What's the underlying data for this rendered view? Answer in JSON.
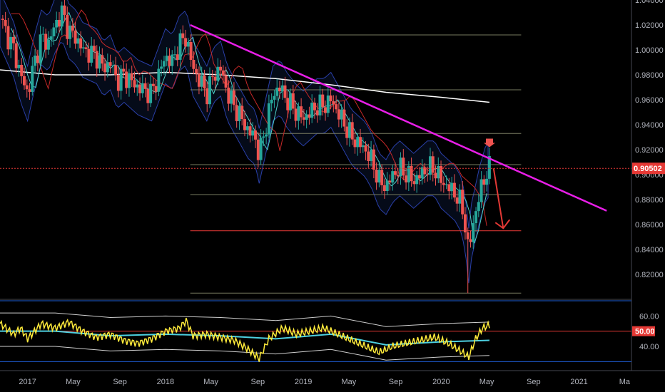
{
  "colors": {
    "background": "#000000",
    "candle_up": "#26a69a",
    "candle_down": "#ef5350",
    "trendline": "#e91ee8",
    "fib_line": "#787b60",
    "fib_red_line": "#e53935",
    "current_price_line": "#e53935",
    "bb_outline": "#2a3fa8",
    "ma_white": "#ffffff",
    "ma_red": "#c62828",
    "ma_teal": "#4dd0c8",
    "rsi_line": "#ffeb3b",
    "rsi_ma": "#4dd0e1",
    "rsi_band": "#cfcfcf",
    "rsi_mid_line": "#e53935",
    "rsi_bound_line": "#1e5bd1",
    "arrow": "#e53935",
    "marker": "#ef5350"
  },
  "chart_data": [
    {
      "type": "candlestick",
      "name": "price",
      "title": "",
      "ylim": [
        0.8,
        1.04
      ],
      "y_ticks": [
        "1.04000",
        "1.02000",
        "1.00000",
        "0.98000",
        "0.96000",
        "0.94000",
        "0.92000",
        "0.90000",
        "0.88000",
        "0.86000",
        "0.84000",
        "0.82000"
      ],
      "y_tick_values": [
        1.04,
        1.02,
        1.0,
        0.98,
        0.96,
        0.94,
        0.92,
        0.9,
        0.88,
        0.86,
        0.84,
        0.82
      ],
      "x_ticks": [
        "2017",
        "May",
        "Sep",
        "2018",
        "May",
        "Sep",
        "2019",
        "May",
        "Sep",
        "2020",
        "May",
        "Sep",
        "2021",
        "Ma"
      ],
      "x_tick_values": [
        2017.0,
        2017.33,
        2017.67,
        2018.0,
        2018.33,
        2018.67,
        2019.0,
        2019.33,
        2019.67,
        2020.0,
        2020.33,
        2020.67,
        2021.0,
        2021.33
      ],
      "x_range": [
        2016.8,
        2021.38
      ],
      "current_price": 0.90502,
      "current_price_label": "0.90502",
      "close_path": [
        [
          2016.8,
          1.025
        ],
        [
          2016.9,
          1.0
        ],
        [
          2016.95,
          0.98
        ],
        [
          2017.0,
          0.965
        ],
        [
          2017.05,
          0.99
        ],
        [
          2017.1,
          1.01
        ],
        [
          2017.15,
          1.005
        ],
        [
          2017.2,
          1.02
        ],
        [
          2017.25,
          1.03
        ],
        [
          2017.3,
          1.015
        ],
        [
          2017.35,
          1.01
        ],
        [
          2017.4,
          1.0
        ],
        [
          2017.5,
          0.995
        ],
        [
          2017.55,
          0.985
        ],
        [
          2017.6,
          0.99
        ],
        [
          2017.65,
          0.975
        ],
        [
          2017.7,
          0.98
        ],
        [
          2017.8,
          0.97
        ],
        [
          2017.9,
          0.965
        ],
        [
          2017.95,
          0.98
        ],
        [
          2018.0,
          0.995
        ],
        [
          2018.05,
          0.99
        ],
        [
          2018.1,
          1.005
        ],
        [
          2018.15,
          1.01
        ],
        [
          2018.2,
          0.985
        ],
        [
          2018.25,
          0.975
        ],
        [
          2018.3,
          0.965
        ],
        [
          2018.35,
          0.98
        ],
        [
          2018.4,
          0.985
        ],
        [
          2018.45,
          0.965
        ],
        [
          2018.5,
          0.955
        ],
        [
          2018.55,
          0.945
        ],
        [
          2018.6,
          0.935
        ],
        [
          2018.65,
          0.93
        ],
        [
          2018.68,
          0.915
        ],
        [
          2018.72,
          0.935
        ],
        [
          2018.78,
          0.965
        ],
        [
          2018.83,
          0.97
        ],
        [
          2018.88,
          0.96
        ],
        [
          2018.95,
          0.95
        ],
        [
          2019.0,
          0.945
        ],
        [
          2019.05,
          0.95
        ],
        [
          2019.1,
          0.955
        ],
        [
          2019.15,
          0.955
        ],
        [
          2019.2,
          0.96
        ],
        [
          2019.25,
          0.95
        ],
        [
          2019.3,
          0.94
        ],
        [
          2019.35,
          0.93
        ],
        [
          2019.4,
          0.925
        ],
        [
          2019.45,
          0.92
        ],
        [
          2019.5,
          0.91
        ],
        [
          2019.55,
          0.895
        ],
        [
          2019.6,
          0.89
        ],
        [
          2019.65,
          0.9
        ],
        [
          2019.7,
          0.905
        ],
        [
          2019.75,
          0.9
        ],
        [
          2019.8,
          0.895
        ],
        [
          2019.85,
          0.9
        ],
        [
          2019.9,
          0.905
        ],
        [
          2019.95,
          0.905
        ],
        [
          2020.0,
          0.895
        ],
        [
          2020.05,
          0.89
        ],
        [
          2020.1,
          0.885
        ],
        [
          2020.15,
          0.875
        ],
        [
          2020.18,
          0.855
        ],
        [
          2020.2,
          0.835
        ],
        [
          2020.22,
          0.855
        ],
        [
          2020.25,
          0.87
        ],
        [
          2020.28,
          0.885
        ],
        [
          2020.32,
          0.9
        ],
        [
          2020.35,
          0.905
        ]
      ],
      "candles_note": "",
      "trendline": {
        "from": [
          2018.18,
          1.02
        ],
        "to": [
          2021.2,
          0.871
        ]
      },
      "fib_levels": [
        1.012,
        0.968,
        0.933,
        0.908,
        0.884,
        0.855,
        0.805
      ],
      "fib_red_level": 0.855,
      "ma_white": [
        [
          2016.8,
          0.984
        ],
        [
          2017.2,
          0.98
        ],
        [
          2017.6,
          0.98
        ],
        [
          2018.0,
          0.982
        ],
        [
          2018.4,
          0.98
        ],
        [
          2018.8,
          0.977
        ],
        [
          2019.2,
          0.972
        ],
        [
          2019.6,
          0.966
        ],
        [
          2020.0,
          0.962
        ],
        [
          2020.35,
          0.958
        ]
      ],
      "arrow_from": [
        2020.38,
        0.905
      ],
      "arrow_to": [
        2020.45,
        0.857
      ],
      "marker_at": [
        2020.35,
        0.922
      ]
    },
    {
      "type": "line",
      "name": "rsi",
      "ylim": [
        25,
        70
      ],
      "y_ticks": [
        "60.00",
        "40.00"
      ],
      "y_tick_values": [
        60,
        40
      ],
      "highlight_value": 50,
      "highlight_label": "50.00",
      "upper_bound": 70,
      "lower_bound": 30,
      "rsi_path": [
        [
          2016.8,
          55
        ],
        [
          2016.9,
          48
        ],
        [
          2016.95,
          52
        ],
        [
          2017.0,
          45
        ],
        [
          2017.1,
          55
        ],
        [
          2017.2,
          52
        ],
        [
          2017.3,
          56
        ],
        [
          2017.4,
          50
        ],
        [
          2017.5,
          46
        ],
        [
          2017.6,
          48
        ],
        [
          2017.7,
          44
        ],
        [
          2017.8,
          42
        ],
        [
          2017.9,
          45
        ],
        [
          2018.0,
          50
        ],
        [
          2018.1,
          52
        ],
        [
          2018.15,
          57
        ],
        [
          2018.2,
          47
        ],
        [
          2018.3,
          48
        ],
        [
          2018.4,
          46
        ],
        [
          2018.5,
          44
        ],
        [
          2018.6,
          38
        ],
        [
          2018.68,
          32
        ],
        [
          2018.75,
          45
        ],
        [
          2018.85,
          52
        ],
        [
          2018.95,
          48
        ],
        [
          2019.05,
          50
        ],
        [
          2019.15,
          52
        ],
        [
          2019.25,
          48
        ],
        [
          2019.35,
          44
        ],
        [
          2019.45,
          40
        ],
        [
          2019.55,
          36
        ],
        [
          2019.65,
          40
        ],
        [
          2019.75,
          42
        ],
        [
          2019.85,
          44
        ],
        [
          2019.95,
          46
        ],
        [
          2020.05,
          42
        ],
        [
          2020.12,
          38
        ],
        [
          2020.2,
          33
        ],
        [
          2020.25,
          45
        ],
        [
          2020.3,
          52
        ],
        [
          2020.35,
          54
        ]
      ],
      "rsi_ma_path": [
        [
          2016.8,
          50
        ],
        [
          2017.2,
          50
        ],
        [
          2017.6,
          47
        ],
        [
          2018.0,
          48
        ],
        [
          2018.4,
          47
        ],
        [
          2018.8,
          45
        ],
        [
          2019.2,
          48
        ],
        [
          2019.6,
          41
        ],
        [
          2020.0,
          43
        ],
        [
          2020.35,
          44
        ]
      ]
    }
  ]
}
